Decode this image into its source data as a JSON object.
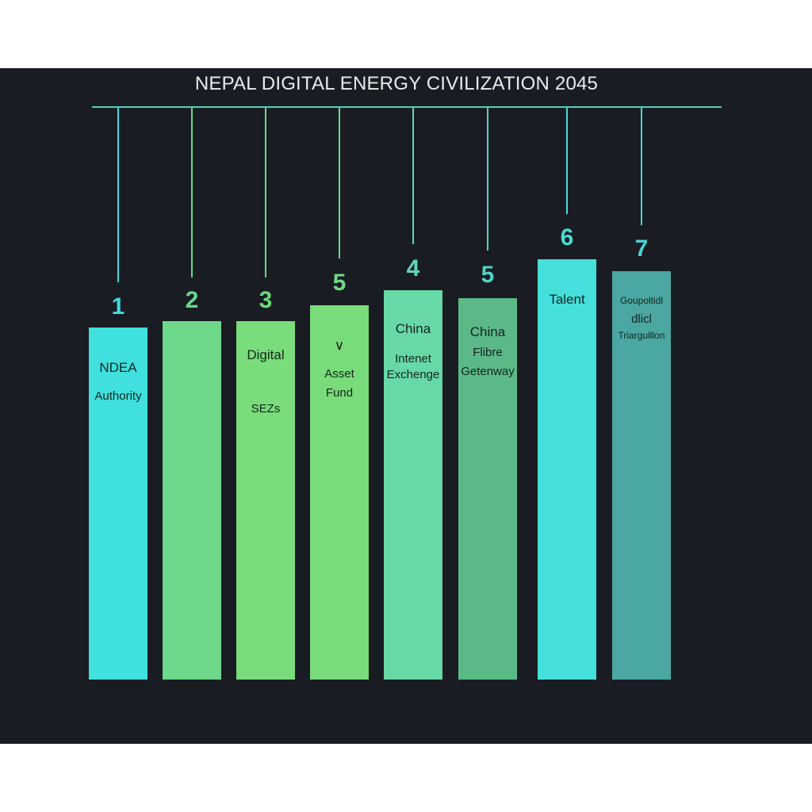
{
  "title": "NEPAL DIGITAL ENERGY CIVILIZATION 2045",
  "pillars": [
    {
      "number": "1",
      "lines": [
        "NDEA",
        "Authority"
      ],
      "color": "#3fe0dd",
      "number_color": "#3fd9dd"
    },
    {
      "number": "2",
      "lines": [],
      "color": "#6ed88a",
      "number_color": "#66d88a"
    },
    {
      "number": "3",
      "lines": [
        "Digital",
        "SEZs"
      ],
      "color": "#78dd7a",
      "number_color": "#6bd87a"
    },
    {
      "number": "5",
      "lines": [
        "∨",
        "Asset",
        "Fund"
      ],
      "color": "#79dc7b",
      "number_color": "#6fd88a"
    },
    {
      "number": "4",
      "lines": [
        "China",
        "Intenet",
        "Exchenge"
      ],
      "color": "#67d9a6",
      "number_color": "#5fd6c0"
    },
    {
      "number": "5",
      "lines": [
        "China",
        "Flibre",
        "Getenway"
      ],
      "color": "#5bb988",
      "number_color": "#52d2c6"
    },
    {
      "number": "6",
      "lines": [
        "Talent"
      ],
      "color": "#45e0dc",
      "number_color": "#45dcd8"
    },
    {
      "number": "7",
      "lines": [
        "Goupoltidl",
        "dlicl",
        "Triargulllon"
      ],
      "color": "#4aa7a2",
      "number_color": "#48d6d2"
    }
  ]
}
